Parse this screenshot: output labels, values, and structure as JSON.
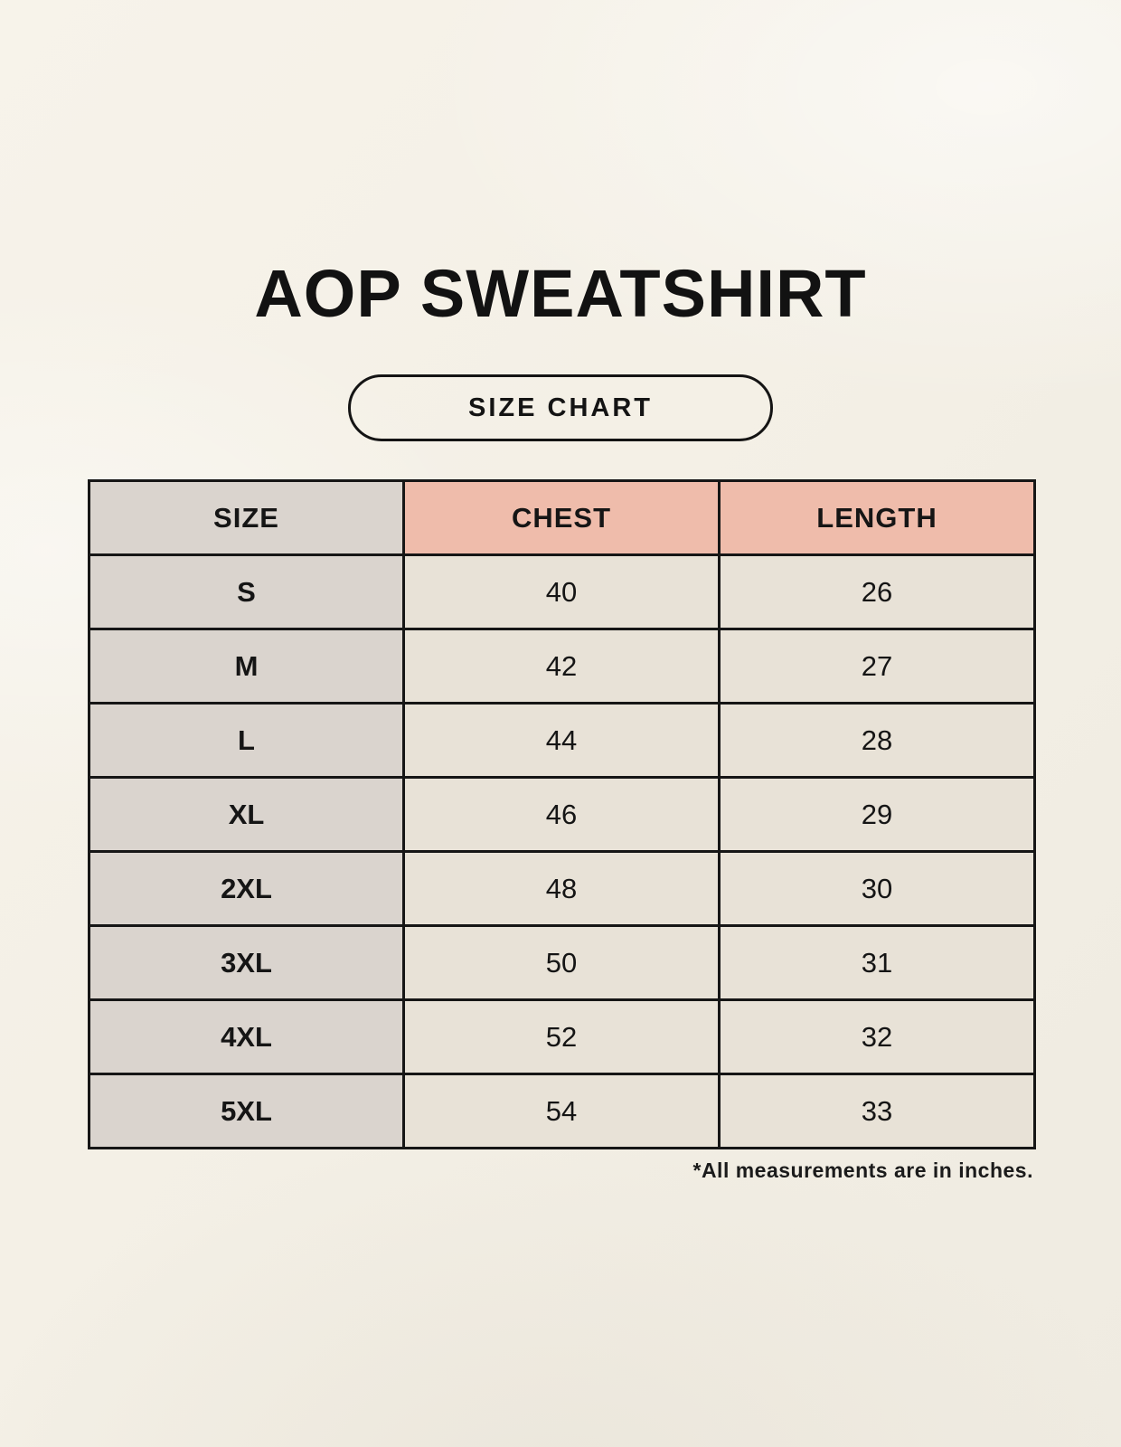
{
  "title": "AOP SWEATSHIRT",
  "badge_label": "SIZE CHART",
  "table": {
    "headers": [
      "SIZE",
      "CHEST",
      "LENGTH"
    ],
    "rows": [
      {
        "size": "S",
        "chest": "40",
        "length": "26"
      },
      {
        "size": "M",
        "chest": "42",
        "length": "27"
      },
      {
        "size": "L",
        "chest": "44",
        "length": "28"
      },
      {
        "size": "XL",
        "chest": "46",
        "length": "29"
      },
      {
        "size": "2XL",
        "chest": "48",
        "length": "30"
      },
      {
        "size": "3XL",
        "chest": "50",
        "length": "31"
      },
      {
        "size": "4XL",
        "chest": "52",
        "length": "32"
      },
      {
        "size": "5XL",
        "chest": "54",
        "length": "33"
      }
    ]
  },
  "footnote": "*All measurements are in inches.",
  "colors": {
    "background": "#f4f0e6",
    "header_accent": "#efbcab",
    "size_column": "#dad4ce",
    "value_cell": "#e8e2d7",
    "border": "#161616",
    "text": "#151515"
  }
}
